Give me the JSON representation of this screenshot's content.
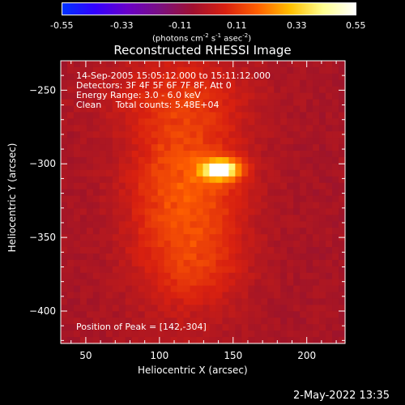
{
  "colorbar": {
    "ticks": [
      "-0.55",
      "-0.33",
      "-0.11",
      "0.11",
      "0.33",
      "0.55"
    ],
    "unit_parts": [
      "(photons cm",
      "-2",
      " s",
      "-1",
      " asec",
      "-2",
      ")"
    ],
    "colors": [
      "#0033ff",
      "#3300ff",
      "#6a00c8",
      "#7a1080",
      "#a01030",
      "#d82010",
      "#ff6000",
      "#ffc000",
      "#ffff90",
      "#ffffff"
    ]
  },
  "chart_data": {
    "type": "heatmap",
    "title": "Reconstructed RHESSI Image",
    "xlabel": "Heliocentric X (arcsec)",
    "ylabel": "Heliocentric Y (arcsec)",
    "xlim": [
      33,
      226
    ],
    "ylim": [
      -422,
      -230
    ],
    "xticks": [
      50,
      100,
      150,
      200
    ],
    "yticks": [
      -250,
      -300,
      -350,
      -400
    ],
    "color_range": [
      -0.55,
      0.55
    ],
    "peak": {
      "x": 142,
      "y": -304
    },
    "annotations": [
      "14-Sep-2005 15:05:12.000 to 15:11:12.000",
      "Detectors: 3F 4F 5F 6F 7F 8F, Att 0",
      "Energy Range: 3.0 - 6.0 keV",
      "Clean     Total counts: 5.48E+04"
    ],
    "peak_label": "Position of Peak = [142,-304]"
  },
  "timestamp": "2-May-2022 13:35"
}
